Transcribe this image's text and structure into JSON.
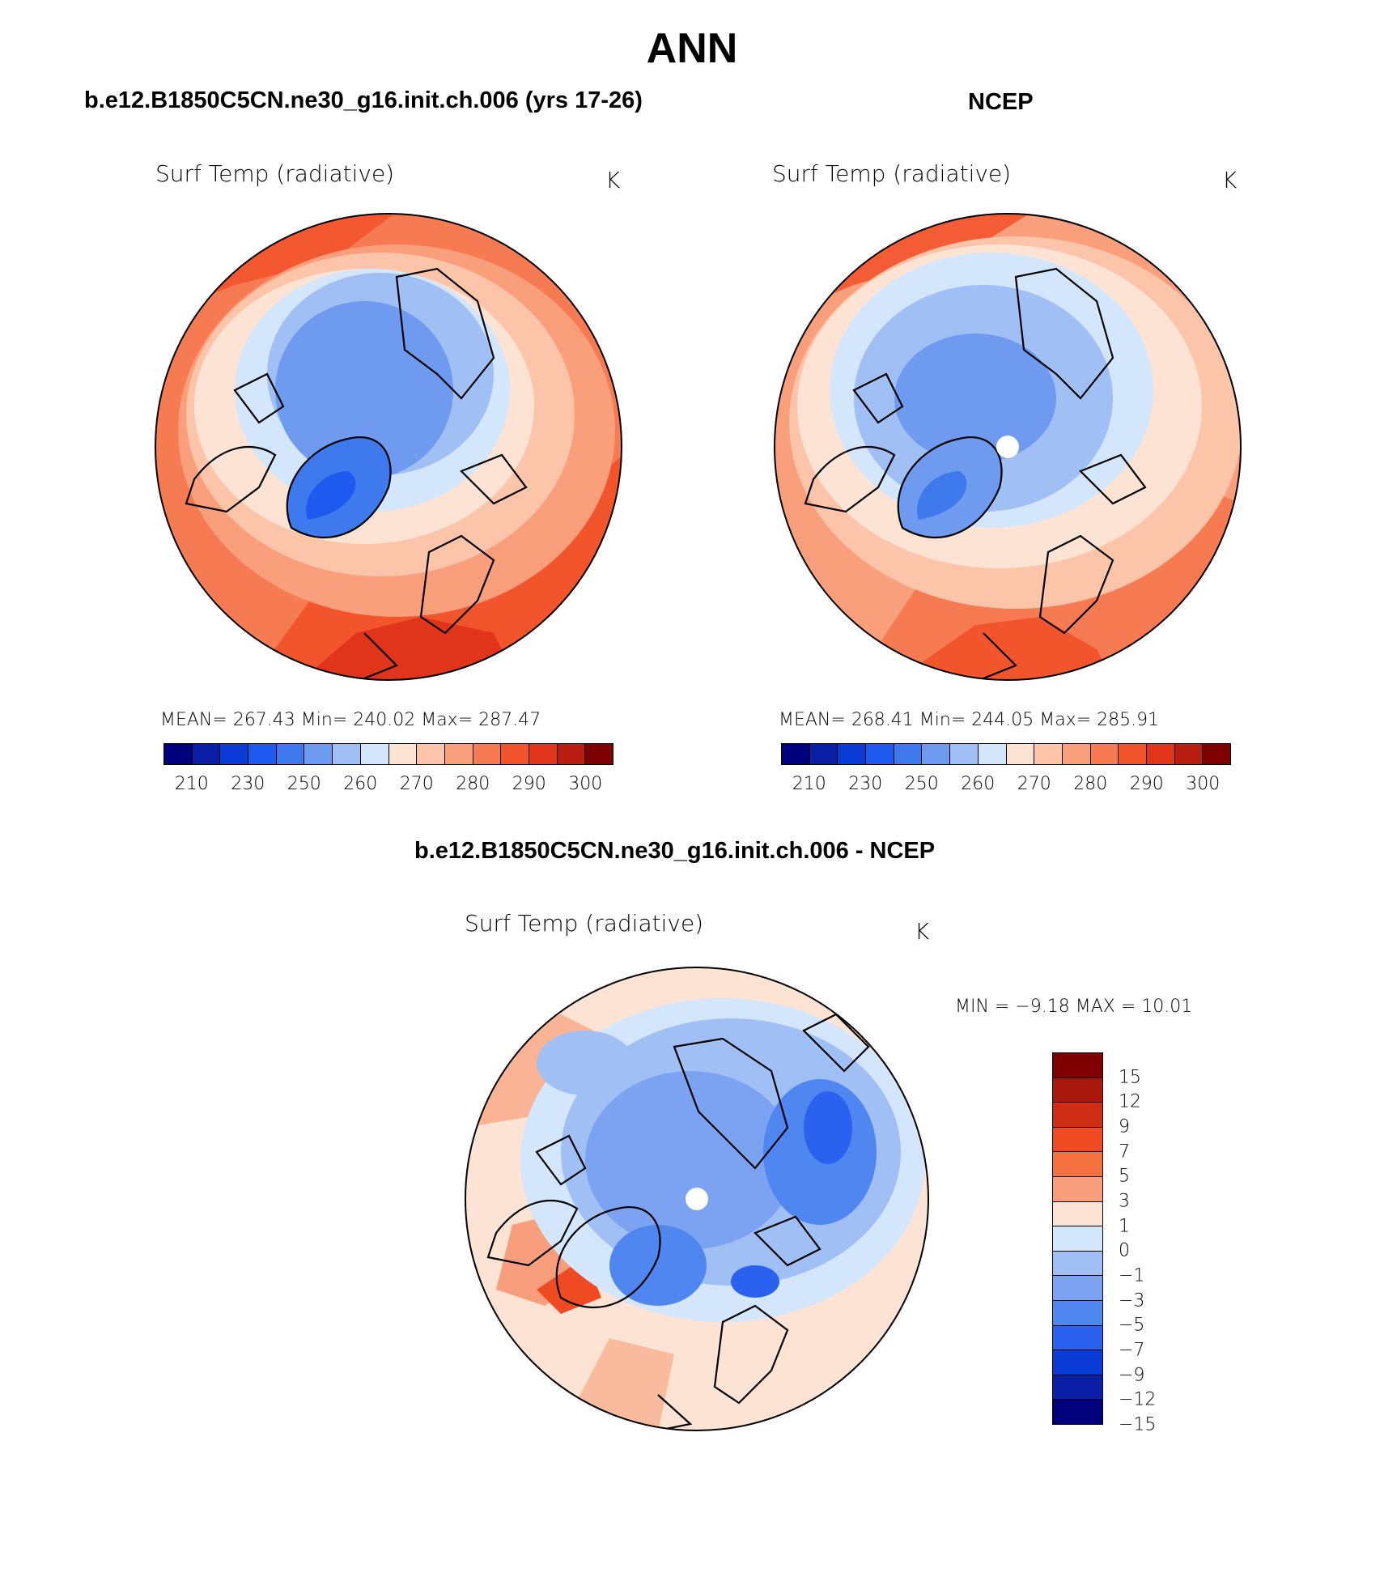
{
  "figure": {
    "title": "ANN",
    "units": "K"
  },
  "panels": [
    {
      "header": "b.e12.B1850C5CN.ne30_g16.init.ch.006 (yrs 17-26)",
      "variable": "Surf Temp (radiative)",
      "units": "K",
      "stats_text": "MEAN=  267.43    Min=  240.02    Max=  287.47"
    },
    {
      "header": "NCEP",
      "variable": "Surf Temp (radiative)",
      "units": "K",
      "stats_text": "MEAN=  268.41    Min=  244.05    Max=  285.91"
    }
  ],
  "difference": {
    "header": "b.e12.B1850C5CN.ne30_g16.init.ch.006 - NCEP",
    "variable": "Surf Temp (radiative)",
    "units": "K",
    "minmax_text": "MIN =    −9.18  MAX =    10.01"
  },
  "temp_colorbar": {
    "ticks": [
      "210",
      "230",
      "250",
      "260",
      "270",
      "280",
      "290",
      "300"
    ],
    "colors": [
      "#00007f",
      "#0a1fa6",
      "#0a3bd6",
      "#1e59f0",
      "#3e7aee",
      "#6e9bf0",
      "#a0bff5",
      "#d4e6fb",
      "#fde3d3",
      "#fcc4a9",
      "#fa9f7c",
      "#f77b52",
      "#f2542c",
      "#e0341b",
      "#b81d10",
      "#7e0000"
    ]
  },
  "diff_colorbar": {
    "labels": [
      "15",
      "12",
      "9",
      "7",
      "5",
      "3",
      "1",
      "0",
      "−1",
      "−3",
      "−5",
      "−7",
      "−9",
      "−12",
      "−15"
    ],
    "colors": [
      "#7e0000",
      "#a8180c",
      "#d02e14",
      "#ef4a22",
      "#f5703f",
      "#f99e7c",
      "#fde3d3",
      "#d4e6fb",
      "#a0bff5",
      "#7ba3f1",
      "#4f86ef",
      "#2a62ef",
      "#0a3bd6",
      "#0a1fa6",
      "#00007f"
    ]
  }
}
